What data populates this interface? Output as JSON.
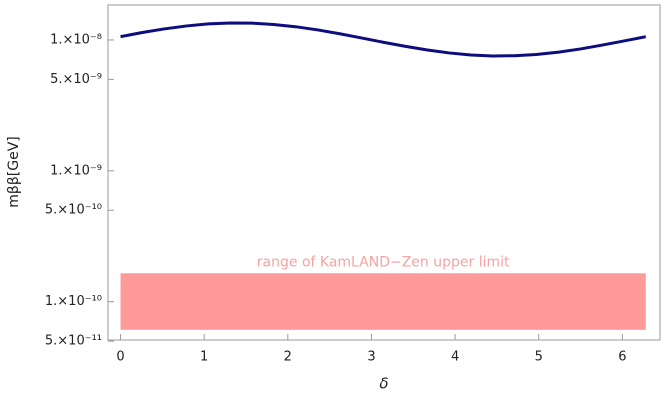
{
  "chart_data": {
    "type": "line",
    "log_y": true,
    "xlabel": "δ",
    "ylabel": "mββ[GeV]",
    "x": [
      0,
      0.26,
      0.52,
      0.79,
      1.05,
      1.31,
      1.57,
      1.83,
      2.09,
      2.36,
      2.62,
      2.88,
      3.14,
      3.4,
      3.67,
      3.93,
      4.19,
      4.45,
      4.71,
      4.97,
      5.24,
      5.5,
      5.76,
      6.02,
      6.28
    ],
    "series": [
      {
        "color": "#0d0d80",
        "values": [
          1.06e-08,
          1.14e-08,
          1.214e-08,
          1.28e-08,
          1.326e-08,
          1.348e-08,
          1.344e-08,
          1.314e-08,
          1.263e-08,
          1.193e-08,
          1.116e-08,
          1.036e-08,
          9.61e-09,
          8.95e-09,
          8.38e-09,
          7.96e-09,
          7.68e-09,
          7.55e-09,
          7.58e-09,
          7.74e-09,
          8.07e-09,
          8.54e-09,
          9.14e-09,
          9.83e-09,
          1.059e-08
        ]
      }
    ],
    "band": {
      "label": "range of KamLAND−Zen upper limit",
      "x": [
        0,
        6.28
      ],
      "y": [
        6.1e-11,
        1.65e-10
      ],
      "color": "#ff9a9a",
      "label_color": "#f5a3a3"
    },
    "xlim": [
      -0.15,
      6.45
    ],
    "xticks": [
      0,
      1,
      2,
      3,
      4,
      5,
      6
    ],
    "ylim": [
      5.1e-11,
      1.85e-08
    ],
    "yticks": [
      {
        "value": 1e-08,
        "label": "1.×10⁻⁸"
      },
      {
        "value": 5e-09,
        "label": "5.×10⁻⁹"
      },
      {
        "value": 1e-09,
        "label": "1.×10⁻⁹"
      },
      {
        "value": 5e-10,
        "label": "5.×10⁻¹⁰"
      },
      {
        "value": 1e-10,
        "label": "1.×10⁻¹⁰"
      },
      {
        "value": 5e-11,
        "label": "5.×10⁻¹¹"
      }
    ]
  }
}
